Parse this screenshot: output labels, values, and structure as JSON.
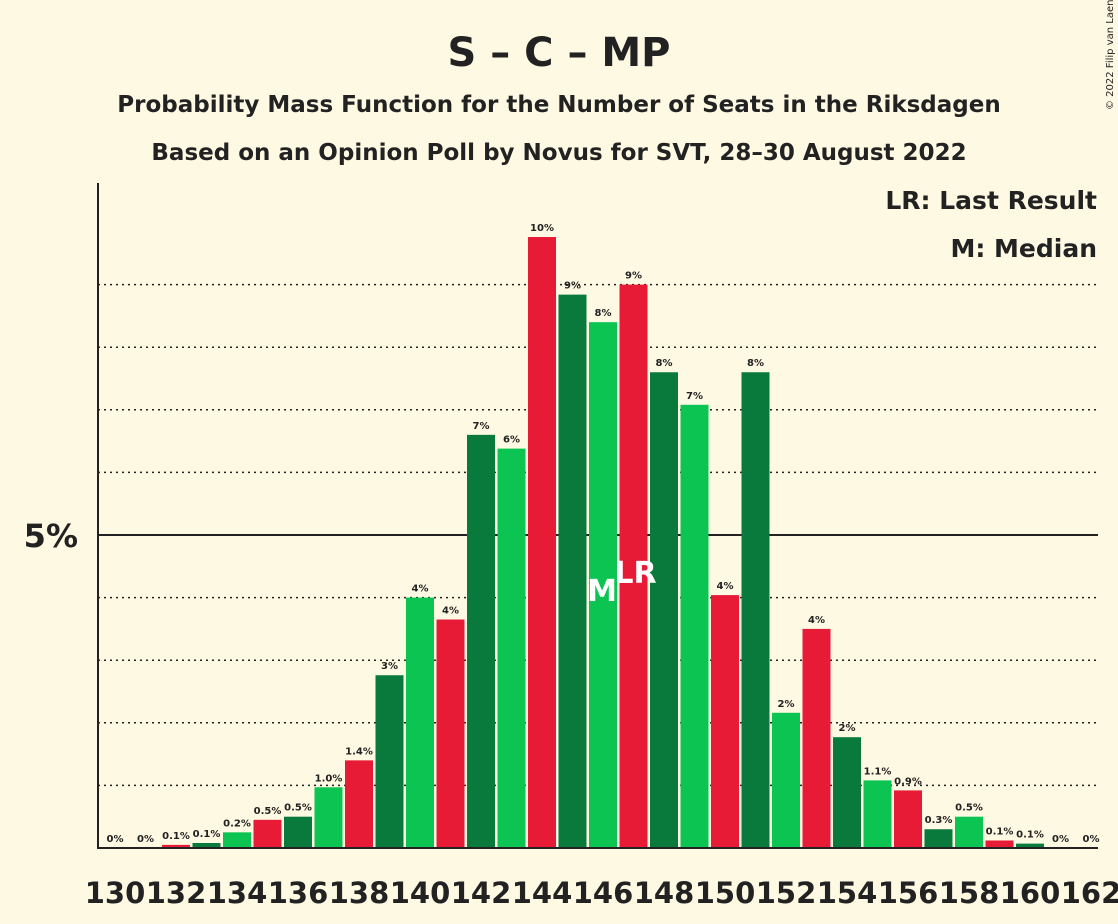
{
  "title": "S – C – MP",
  "subtitle": "Probability Mass Function for the Number of Seats in the Riksdagen",
  "subtitle2": "Based on an Opinion Poll by Novus for SVT, 28–30 August 2022",
  "legend": {
    "lr": "LR: Last Result",
    "m": "M: Median"
  },
  "copyright": "© 2022 Filip van Laenen",
  "colors": {
    "red": "#e81b37",
    "dark_green": "#0a7a3c",
    "light_green": "#0cc452",
    "background": "#fef9e3"
  },
  "markers": {
    "median": "M",
    "median_seat": 146,
    "last_result": "LR",
    "last_result_seat": 147
  },
  "chart_data": {
    "type": "bar",
    "ylim": [
      0,
      10.6
    ],
    "y_ticks": [
      {
        "value": 5,
        "label": "5%"
      }
    ],
    "dotted_gridlines": [
      1,
      2,
      3,
      4,
      6,
      7,
      8,
      9
    ],
    "x_tick_labels": [
      "130",
      "132",
      "134",
      "136",
      "138",
      "140",
      "142",
      "144",
      "146",
      "148",
      "150",
      "152",
      "154",
      "156",
      "158",
      "160",
      "162"
    ],
    "bars": [
      {
        "seat": 130,
        "value": 0.0,
        "label": "0%",
        "color": "red"
      },
      {
        "seat": 131,
        "value": 0.0,
        "label": "0%",
        "color": "dark_green"
      },
      {
        "seat": 132,
        "value": 0.05,
        "label": "0.1%",
        "color": "red"
      },
      {
        "seat": 133,
        "value": 0.08,
        "label": "0.1%",
        "color": "dark_green"
      },
      {
        "seat": 134,
        "value": 0.25,
        "label": "0.2%",
        "color": "light_green"
      },
      {
        "seat": 135,
        "value": 0.45,
        "label": "0.5%",
        "color": "red"
      },
      {
        "seat": 136,
        "value": 0.5,
        "label": "0.5%",
        "color": "dark_green"
      },
      {
        "seat": 137,
        "value": 0.97,
        "label": "1.0%",
        "color": "light_green"
      },
      {
        "seat": 138,
        "value": 1.4,
        "label": "1.4%",
        "color": "red"
      },
      {
        "seat": 139,
        "value": 2.76,
        "label": "3%",
        "color": "dark_green"
      },
      {
        "seat": 140,
        "value": 4.0,
        "label": "4%",
        "color": "light_green"
      },
      {
        "seat": 141,
        "value": 3.65,
        "label": "4%",
        "color": "red"
      },
      {
        "seat": 142,
        "value": 6.6,
        "label": "7%",
        "color": "dark_green"
      },
      {
        "seat": 143,
        "value": 6.38,
        "label": "6%",
        "color": "light_green"
      },
      {
        "seat": 144,
        "value": 9.76,
        "label": "10%",
        "color": "red"
      },
      {
        "seat": 145,
        "value": 8.84,
        "label": "9%",
        "color": "dark_green"
      },
      {
        "seat": 146,
        "value": 8.4,
        "label": "8%",
        "color": "light_green"
      },
      {
        "seat": 147,
        "value": 9.0,
        "label": "9%",
        "color": "red"
      },
      {
        "seat": 148,
        "value": 7.6,
        "label": "8%",
        "color": "dark_green"
      },
      {
        "seat": 149,
        "value": 7.08,
        "label": "7%",
        "color": "light_green"
      },
      {
        "seat": 150,
        "value": 4.04,
        "label": "4%",
        "color": "red"
      },
      {
        "seat": 151,
        "value": 7.6,
        "label": "8%",
        "color": "dark_green"
      },
      {
        "seat": 152,
        "value": 2.16,
        "label": "2%",
        "color": "light_green"
      },
      {
        "seat": 153,
        "value": 3.5,
        "label": "4%",
        "color": "red"
      },
      {
        "seat": 154,
        "value": 1.77,
        "label": "2%",
        "color": "dark_green"
      },
      {
        "seat": 155,
        "value": 1.08,
        "label": "1.1%",
        "color": "light_green"
      },
      {
        "seat": 156,
        "value": 0.92,
        "label": "0.9%",
        "color": "red"
      },
      {
        "seat": 157,
        "value": 0.3,
        "label": "0.3%",
        "color": "dark_green"
      },
      {
        "seat": 158,
        "value": 0.5,
        "label": "0.5%",
        "color": "light_green"
      },
      {
        "seat": 159,
        "value": 0.12,
        "label": "0.1%",
        "color": "red"
      },
      {
        "seat": 160,
        "value": 0.07,
        "label": "0.1%",
        "color": "dark_green"
      },
      {
        "seat": 161,
        "value": 0.0,
        "label": "0%",
        "color": "light_green"
      },
      {
        "seat": 162,
        "value": 0.0,
        "label": "0%",
        "color": "red"
      }
    ]
  }
}
